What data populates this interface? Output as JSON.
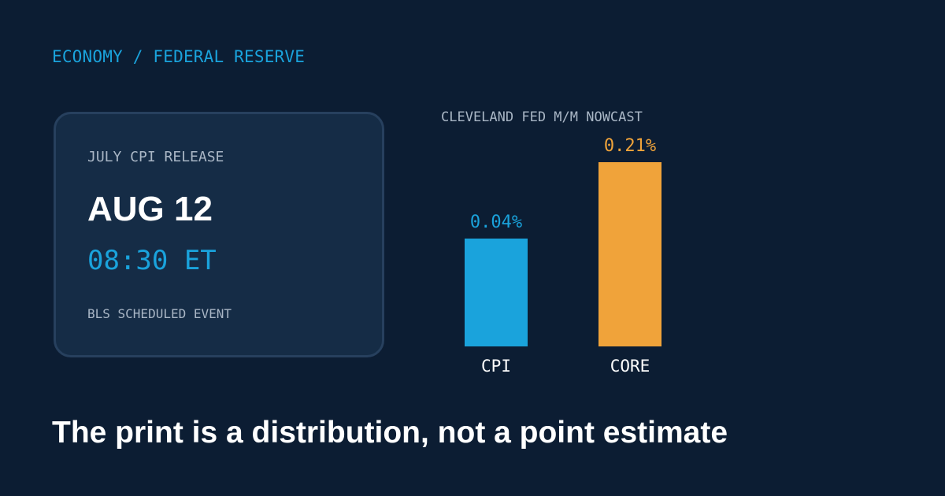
{
  "breadcrumb": "ECONOMY / FEDERAL RESERVE",
  "event_card": {
    "eyebrow": "JULY CPI RELEASE",
    "date": "AUG 12",
    "time": "08:30 ET",
    "footnote": "BLS SCHEDULED EVENT"
  },
  "chart_data": {
    "type": "bar",
    "title": "CLEVELAND FED M/M NOWCAST",
    "categories": [
      "CPI",
      "CORE"
    ],
    "values": [
      0.04,
      0.21
    ],
    "value_labels": [
      "0.04%",
      "0.21%"
    ],
    "colors": [
      "#1aa3dc",
      "#f0a33a"
    ],
    "ylim": [
      -0.2,
      0.21
    ],
    "grid": false,
    "legend": "none"
  },
  "headline": "The print is a distribution, not a point estimate"
}
